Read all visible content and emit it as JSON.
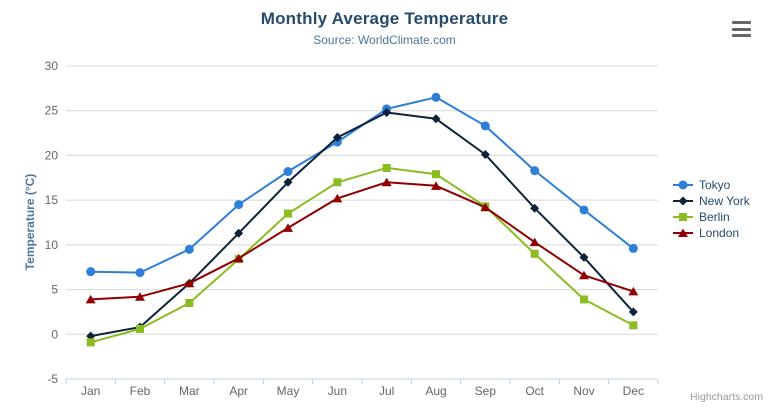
{
  "credit": "Highcharts.com",
  "colors": {
    "title": "#274b6d",
    "subtitle": "#4d759e",
    "legend_text": "#274b6d",
    "axis_label": "#666666",
    "grid_line": "#d8d8d8",
    "axis_line": "#c0d0e0",
    "credit_text": "#999999",
    "menu_icon": "#666666"
  },
  "icons": {
    "menu": "hamburger-icon"
  },
  "chart_data": {
    "type": "line",
    "title": "Monthly Average Temperature",
    "subtitle": "Source: WorldClimate.com",
    "xlabel": "",
    "ylabel": "Temperature (°C)",
    "categories": [
      "Jan",
      "Feb",
      "Mar",
      "Apr",
      "May",
      "Jun",
      "Jul",
      "Aug",
      "Sep",
      "Oct",
      "Nov",
      "Dec"
    ],
    "yticks": [
      -5,
      0,
      5,
      10,
      15,
      20,
      25,
      30
    ],
    "ylim": [
      -5,
      30
    ],
    "grid": true,
    "legend_position": "right",
    "series": [
      {
        "name": "Tokyo",
        "color": "#2f7ed8",
        "marker": "circle",
        "values": [
          7.0,
          6.9,
          9.5,
          14.5,
          18.2,
          21.5,
          25.2,
          26.5,
          23.3,
          18.3,
          13.9,
          9.6
        ]
      },
      {
        "name": "New York",
        "color": "#0d233a",
        "marker": "diamond",
        "values": [
          -0.2,
          0.8,
          5.7,
          11.3,
          17.0,
          22.0,
          24.8,
          24.1,
          20.1,
          14.1,
          8.6,
          2.5
        ]
      },
      {
        "name": "Berlin",
        "color": "#8bbc21",
        "marker": "square",
        "values": [
          -0.9,
          0.6,
          3.5,
          8.4,
          13.5,
          17.0,
          18.6,
          17.9,
          14.3,
          9.0,
          3.9,
          1.0
        ]
      },
      {
        "name": "London",
        "color": "#910000",
        "marker": "triangle",
        "values": [
          3.9,
          4.2,
          5.7,
          8.5,
          11.9,
          15.2,
          17.0,
          16.6,
          14.2,
          10.3,
          6.6,
          4.8
        ]
      }
    ]
  }
}
